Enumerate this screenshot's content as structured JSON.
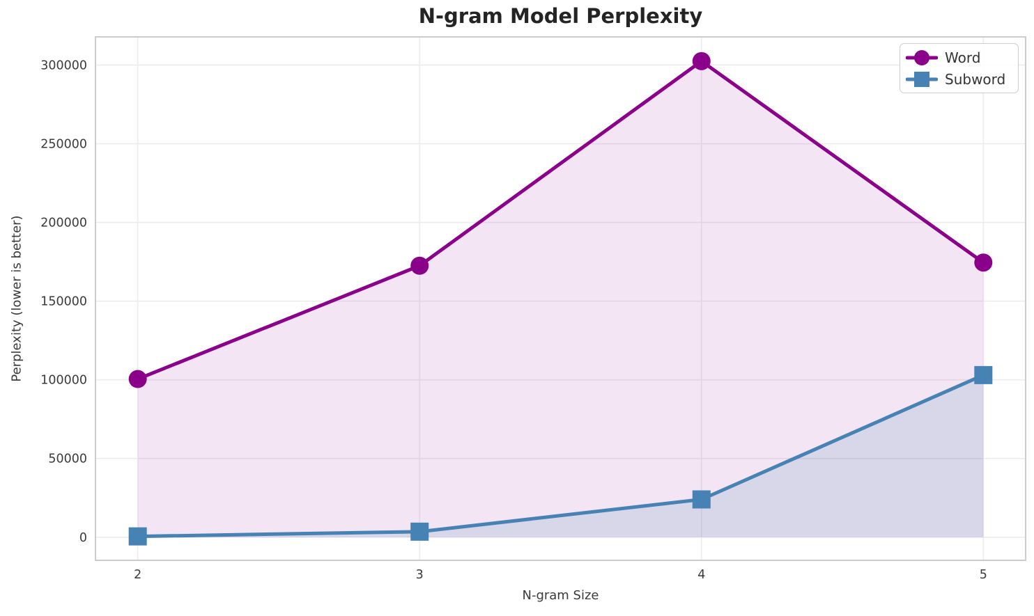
{
  "chart_data": {
    "type": "line",
    "title": "N-gram Model Perplexity",
    "xlabel": "N-gram Size",
    "ylabel": "Perplexity (lower is better)",
    "x": [
      2,
      3,
      4,
      5
    ],
    "xticklabels": [
      "2",
      "3",
      "4",
      "5"
    ],
    "series": [
      {
        "name": "Word",
        "color": "#8B008B",
        "marker": "circle",
        "line_width": 5,
        "marker_size": 26,
        "fill_alpha": 0.1,
        "values": [
          100500,
          172500,
          302500,
          174500
        ]
      },
      {
        "name": "Subword",
        "color": "#4682B4",
        "marker": "square",
        "line_width": 5,
        "marker_size": 26,
        "fill_alpha": 0.15,
        "values": [
          500,
          3500,
          24000,
          103000
        ]
      }
    ],
    "yticks": [
      0,
      50000,
      100000,
      150000,
      200000,
      250000,
      300000
    ],
    "yticklabels": [
      "0",
      "50000",
      "100000",
      "150000",
      "200000",
      "250000",
      "300000"
    ],
    "ylim": [
      -14700,
      317900
    ],
    "xlim": [
      1.85,
      5.15
    ],
    "grid": true,
    "fill_baseline": 0,
    "legend_position": "upper right",
    "colors": {
      "background": "#ffffff",
      "grid": "#ececec",
      "spine": "#cccccc",
      "tick_text": "#3a3a3a",
      "title_text": "#242424"
    }
  }
}
